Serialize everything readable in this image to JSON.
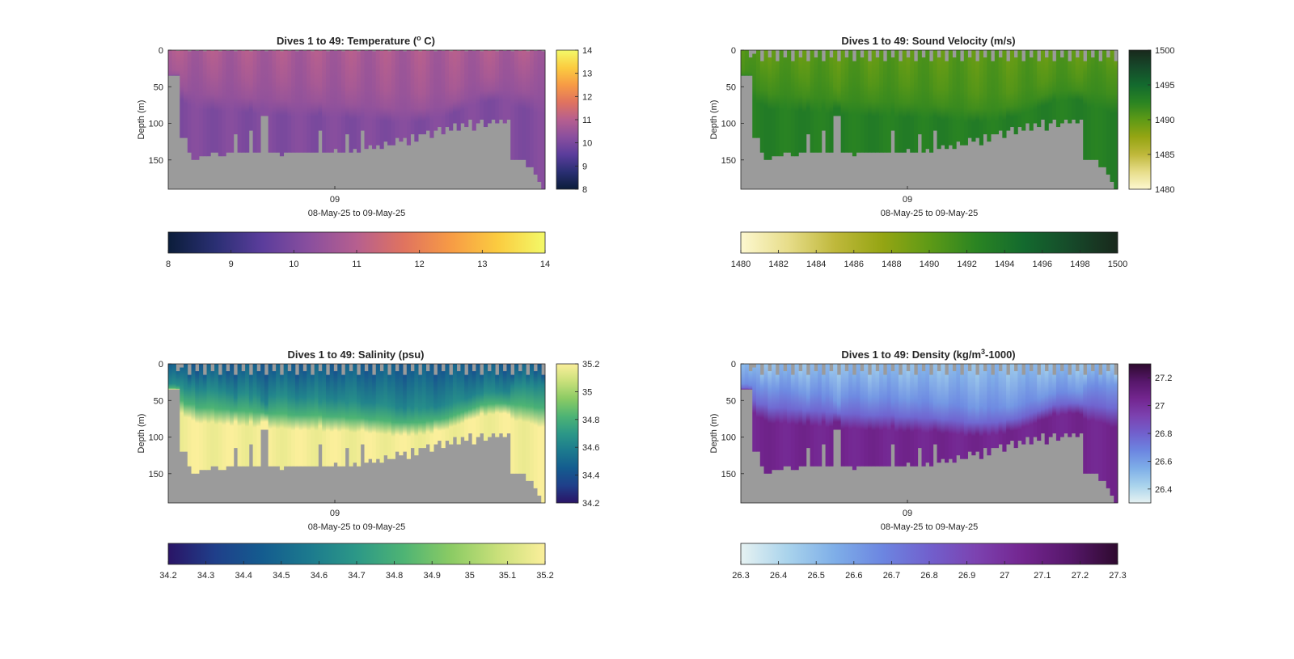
{
  "chart_data": [
    {
      "type": "heatmap",
      "title": "Dives 1 to 49: Temperature (",
      "title_sup": "o",
      "title_tail": " C)",
      "ylabel": "Depth (m)",
      "xlabel": "08-May-25 to 09-May-25",
      "x_tick_labels": [
        "09"
      ],
      "y_ticks": [
        0,
        50,
        100,
        150
      ],
      "y_range": [
        0,
        190
      ],
      "colorbar_right": {
        "ticks": [
          8,
          9,
          10,
          11,
          12,
          13,
          14
        ],
        "range": [
          8,
          14
        ]
      },
      "colorbar_bottom": {
        "ticks": [
          8,
          9,
          10,
          11,
          12,
          13,
          14
        ],
        "range": [
          8,
          14
        ]
      },
      "colormap": [
        "#0b1d3a",
        "#2a2f73",
        "#5b3d9c",
        "#8a4f9e",
        "#b65f8f",
        "#e0735f",
        "#f79b45",
        "#fbcc40",
        "#f3f968"
      ],
      "surface_value": 10.8,
      "deep_value": 10.1,
      "no_data_color": "#9b9b9b"
    },
    {
      "type": "heatmap",
      "title": "Dives 1 to 49: Sound Velocity (m/s)",
      "ylabel": "Depth (m)",
      "xlabel": "08-May-25 to 09-May-25",
      "x_tick_labels": [
        "09"
      ],
      "y_ticks": [
        0,
        50,
        100,
        150
      ],
      "y_range": [
        0,
        190
      ],
      "colorbar_right": {
        "ticks": [
          1480,
          1485,
          1490,
          1495,
          1500
        ],
        "range": [
          1480,
          1500
        ]
      },
      "colorbar_bottom": {
        "ticks": [
          1480,
          1482,
          1484,
          1486,
          1488,
          1490,
          1492,
          1494,
          1496,
          1498,
          1500
        ],
        "range": [
          1480,
          1500
        ]
      },
      "colormap": [
        "#fdf8d0",
        "#e7dd8a",
        "#bfb83b",
        "#95a513",
        "#5e9a16",
        "#2a8422",
        "#136a2e",
        "#164a2a",
        "#19281c"
      ],
      "surface_value": 1490.2,
      "deep_value": 1493.0,
      "no_data_color": "#9b9b9b"
    },
    {
      "type": "heatmap",
      "title": "Dives 1 to 49: Salinity (psu)",
      "ylabel": "Depth (m)",
      "xlabel": "08-May-25 to 09-May-25",
      "x_tick_labels": [
        "09"
      ],
      "y_ticks": [
        0,
        50,
        100,
        150
      ],
      "y_range": [
        0,
        190
      ],
      "colorbar_right": {
        "ticks": [
          34.2,
          34.4,
          34.6,
          34.8,
          35,
          35.2
        ],
        "range": [
          34.2,
          35.2
        ]
      },
      "colorbar_bottom": {
        "ticks": [
          34.2,
          34.3,
          34.4,
          34.5,
          34.6,
          34.7,
          34.8,
          34.9,
          35,
          35.1,
          35.2
        ],
        "range": [
          34.2,
          35.2
        ]
      },
      "colormap": [
        "#2a1466",
        "#1f3f8a",
        "#145c8f",
        "#1c7a8e",
        "#2c9887",
        "#4eb474",
        "#8bcb64",
        "#c9e07a",
        "#fbef9b"
      ],
      "surface_value": 34.45,
      "deep_value": 35.18,
      "no_data_color": "#9b9b9b"
    },
    {
      "type": "heatmap",
      "title": "Dives 1 to 49: Density (kg/m",
      "title_sup": "3",
      "title_tail": "-1000)",
      "ylabel": "Depth (m)",
      "xlabel": "08-May-25 to 09-May-25",
      "x_tick_labels": [
        "09"
      ],
      "y_ticks": [
        0,
        50,
        100,
        150
      ],
      "y_range": [
        0,
        190
      ],
      "colorbar_right": {
        "ticks": [
          26.4,
          26.6,
          26.8,
          27,
          27.2
        ],
        "range": [
          26.3,
          27.3
        ]
      },
      "colorbar_bottom": {
        "ticks": [
          26.3,
          26.4,
          26.5,
          26.6,
          26.7,
          26.8,
          26.9,
          27,
          27.1,
          27.2,
          27.3
        ],
        "range": [
          26.3,
          27.3
        ]
      },
      "colormap": [
        "#e6f2f2",
        "#a9d3ec",
        "#7eaee8",
        "#6c86e1",
        "#7160cd",
        "#7c42b0",
        "#73258f",
        "#56176a",
        "#2e0a2e"
      ],
      "surface_value": 26.5,
      "deep_value": 27.05,
      "no_data_color": "#9b9b9b"
    }
  ],
  "dives": {
    "count": 98,
    "max_depth_m": [
      35,
      35,
      35,
      120,
      120,
      140,
      150,
      150,
      145,
      145,
      145,
      140,
      140,
      145,
      145,
      140,
      140,
      115,
      140,
      140,
      140,
      110,
      140,
      140,
      90,
      90,
      140,
      140,
      140,
      145,
      140,
      140,
      140,
      140,
      140,
      140,
      140,
      140,
      140,
      110,
      140,
      140,
      140,
      135,
      140,
      140,
      115,
      140,
      135,
      140,
      110,
      135,
      130,
      135,
      130,
      135,
      125,
      130,
      130,
      120,
      125,
      120,
      130,
      115,
      125,
      115,
      115,
      110,
      120,
      110,
      105,
      115,
      105,
      110,
      100,
      110,
      100,
      105,
      95,
      110,
      100,
      95,
      105,
      100,
      95,
      100,
      95,
      100,
      95,
      150,
      150,
      150,
      150,
      160,
      160,
      170,
      180,
      190
    ],
    "start_offset_m": [
      0,
      0,
      10,
      5,
      0,
      15,
      0,
      10,
      0,
      15,
      0,
      10,
      0,
      15,
      0,
      10,
      0,
      15,
      0,
      10,
      0,
      15,
      0,
      10,
      0,
      15,
      0,
      10,
      0,
      15,
      0,
      10,
      0,
      15,
      0,
      10,
      0,
      15,
      0,
      10,
      0,
      15,
      0,
      10,
      0,
      15,
      0,
      10,
      0,
      15,
      0,
      10,
      0,
      15,
      0,
      10,
      0,
      15,
      0,
      10,
      0,
      15,
      0,
      10,
      0,
      15,
      0,
      10,
      0,
      15,
      0,
      10,
      0,
      15,
      0,
      10,
      0,
      15,
      0,
      10,
      0,
      15,
      0,
      10,
      0,
      15,
      0,
      10,
      0,
      15,
      0,
      10,
      0,
      15,
      0,
      10,
      0,
      15
    ],
    "thermocline_depth_m": [
      50,
      50,
      50,
      50,
      55,
      55,
      55,
      60,
      60,
      60,
      60,
      60,
      62,
      62,
      62,
      62,
      64,
      64,
      64,
      64,
      65,
      65,
      66,
      66,
      66,
      68,
      68,
      68,
      68,
      68,
      68,
      70,
      70,
      70,
      70,
      70,
      70,
      70,
      70,
      70,
      72,
      72,
      72,
      72,
      72,
      72,
      74,
      74,
      74,
      74,
      74,
      75,
      76,
      76,
      76,
      77,
      78,
      78,
      80,
      80,
      80,
      80,
      80,
      80,
      80,
      80,
      80,
      78,
      78,
      76,
      76,
      75,
      74,
      72,
      70,
      68,
      66,
      64,
      62,
      60,
      58,
      56,
      56,
      55,
      55,
      54,
      54,
      54,
      55,
      55,
      56,
      56,
      57,
      58,
      58,
      60,
      60,
      60
    ]
  }
}
